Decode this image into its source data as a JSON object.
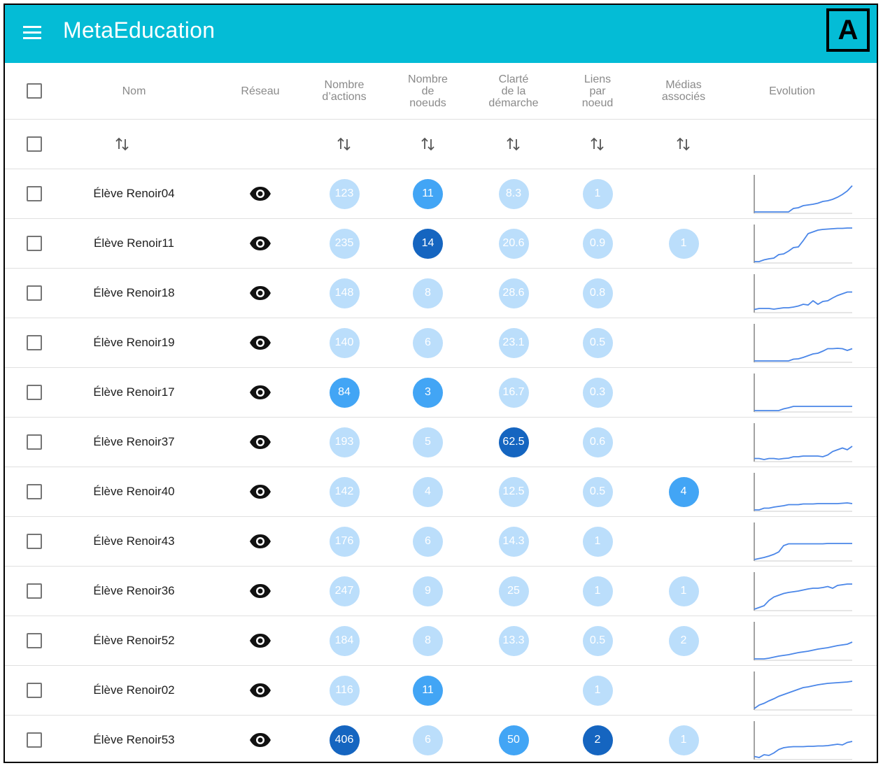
{
  "app": {
    "title": "MetaEducation",
    "badge": "A"
  },
  "columns": {
    "nom": "Nom",
    "reseau": "Réseau",
    "actions": "Nombre\nd’actions",
    "noeuds": "Nombre\nde\nnoeuds",
    "clarte": "Clarté\nde la\ndémarche",
    "liens": "Liens\npar\nnoeud",
    "medias": "Médias\nassociés",
    "evolution": "Evolution"
  },
  "icons": {
    "menu": "menu-icon",
    "network": "eye-icon",
    "sort": "sort-icon"
  },
  "colors": {
    "appbar": "#04bcd6",
    "low": "#bbdefb",
    "mid": "#42a5f5",
    "high": "#1565c0",
    "spark": "#4a86e8"
  },
  "rows": [
    {
      "name": "Élève Renoir04",
      "actions": {
        "v": "123",
        "l": 1
      },
      "noeuds": {
        "v": "11",
        "l": 2
      },
      "clarte": {
        "v": "8.3",
        "l": 1
      },
      "liens": {
        "v": "1",
        "l": 1
      },
      "medias": null,
      "evolution": [
        0,
        0,
        0,
        0,
        0,
        0,
        0,
        0,
        0.1,
        0.12,
        0.18,
        0.2,
        0.22,
        0.25,
        0.3,
        0.32,
        0.36,
        0.42,
        0.5,
        0.6,
        0.75
      ]
    },
    {
      "name": "Élève Renoir11",
      "actions": {
        "v": "235",
        "l": 1
      },
      "noeuds": {
        "v": "14",
        "l": 3
      },
      "clarte": {
        "v": "20.6",
        "l": 1
      },
      "liens": {
        "v": "0.9",
        "l": 1
      },
      "medias": {
        "v": "1",
        "l": 1
      },
      "evolution": [
        0,
        0,
        0.05,
        0.08,
        0.1,
        0.2,
        0.22,
        0.3,
        0.4,
        0.42,
        0.6,
        0.8,
        0.85,
        0.9,
        0.92,
        0.93,
        0.94,
        0.95,
        0.95,
        0.96,
        0.96
      ]
    },
    {
      "name": "Élève Renoir18",
      "actions": {
        "v": "148",
        "l": 1
      },
      "noeuds": {
        "v": "8",
        "l": 1
      },
      "clarte": {
        "v": "28.6",
        "l": 1
      },
      "liens": {
        "v": "0.8",
        "l": 1
      },
      "medias": null,
      "evolution": [
        0.05,
        0.08,
        0.08,
        0.08,
        0.06,
        0.08,
        0.1,
        0.1,
        0.12,
        0.15,
        0.2,
        0.18,
        0.3,
        0.2,
        0.28,
        0.3,
        0.38,
        0.45,
        0.5,
        0.55,
        0.55
      ]
    },
    {
      "name": "Élève Renoir19",
      "actions": {
        "v": "140",
        "l": 1
      },
      "noeuds": {
        "v": "6",
        "l": 1
      },
      "clarte": {
        "v": "23.1",
        "l": 1
      },
      "liens": {
        "v": "0.5",
        "l": 1
      },
      "medias": null,
      "evolution": [
        0,
        0,
        0,
        0,
        0,
        0,
        0,
        0,
        0.05,
        0.06,
        0.1,
        0.15,
        0.2,
        0.22,
        0.28,
        0.35,
        0.35,
        0.36,
        0.35,
        0.3,
        0.35
      ]
    },
    {
      "name": "Élève Renoir17",
      "actions": {
        "v": "84",
        "l": 2
      },
      "noeuds": {
        "v": "3",
        "l": 2
      },
      "clarte": {
        "v": "16.7",
        "l": 1
      },
      "liens": {
        "v": "0.3",
        "l": 1
      },
      "medias": null,
      "evolution": [
        0,
        0,
        0,
        0,
        0,
        0,
        0.05,
        0.08,
        0.12,
        0.12,
        0.12,
        0.12,
        0.12,
        0.12,
        0.12,
        0.12,
        0.12,
        0.12,
        0.12,
        0.12,
        0.12
      ]
    },
    {
      "name": "Élève Renoir37",
      "actions": {
        "v": "193",
        "l": 1
      },
      "noeuds": {
        "v": "5",
        "l": 1
      },
      "clarte": {
        "v": "62.5",
        "l": 3
      },
      "liens": {
        "v": "0.6",
        "l": 1
      },
      "medias": null,
      "evolution": [
        0.05,
        0.05,
        0.02,
        0.05,
        0.05,
        0.03,
        0.05,
        0.06,
        0.1,
        0.1,
        0.12,
        0.12,
        0.12,
        0.12,
        0.1,
        0.15,
        0.25,
        0.3,
        0.35,
        0.3,
        0.4
      ]
    },
    {
      "name": "Élève Renoir40",
      "actions": {
        "v": "142",
        "l": 1
      },
      "noeuds": {
        "v": "4",
        "l": 1
      },
      "clarte": {
        "v": "12.5",
        "l": 1
      },
      "liens": {
        "v": "0.5",
        "l": 1
      },
      "medias": {
        "v": "4",
        "l": 2
      },
      "evolution": [
        0,
        0,
        0.05,
        0.05,
        0.08,
        0.1,
        0.12,
        0.15,
        0.15,
        0.15,
        0.17,
        0.17,
        0.17,
        0.18,
        0.18,
        0.18,
        0.18,
        0.18,
        0.19,
        0.2,
        0.18
      ]
    },
    {
      "name": "Élève Renoir43",
      "actions": {
        "v": "176",
        "l": 1
      },
      "noeuds": {
        "v": "6",
        "l": 1
      },
      "clarte": {
        "v": "14.3",
        "l": 1
      },
      "liens": {
        "v": "1",
        "l": 1
      },
      "medias": null,
      "evolution": [
        0,
        0.03,
        0.06,
        0.1,
        0.15,
        0.22,
        0.4,
        0.45,
        0.45,
        0.45,
        0.45,
        0.45,
        0.45,
        0.45,
        0.45,
        0.46,
        0.46,
        0.46,
        0.46,
        0.46,
        0.46
      ]
    },
    {
      "name": "Élève Renoir36",
      "actions": {
        "v": "247",
        "l": 1
      },
      "noeuds": {
        "v": "9",
        "l": 1
      },
      "clarte": {
        "v": "25",
        "l": 1
      },
      "liens": {
        "v": "1",
        "l": 1
      },
      "medias": {
        "v": "1",
        "l": 1
      },
      "evolution": [
        0,
        0.05,
        0.1,
        0.25,
        0.35,
        0.4,
        0.45,
        0.48,
        0.5,
        0.52,
        0.55,
        0.58,
        0.6,
        0.6,
        0.62,
        0.65,
        0.6,
        0.68,
        0.7,
        0.72,
        0.72
      ]
    },
    {
      "name": "Élève Renoir52",
      "actions": {
        "v": "184",
        "l": 1
      },
      "noeuds": {
        "v": "8",
        "l": 1
      },
      "clarte": {
        "v": "13.3",
        "l": 1
      },
      "liens": {
        "v": "0.5",
        "l": 1
      },
      "medias": {
        "v": "2",
        "l": 1
      },
      "evolution": [
        0,
        0,
        0,
        0.02,
        0.05,
        0.08,
        0.1,
        0.12,
        0.15,
        0.18,
        0.2,
        0.22,
        0.25,
        0.28,
        0.3,
        0.32,
        0.35,
        0.38,
        0.4,
        0.42,
        0.48
      ]
    },
    {
      "name": "Élève Renoir02",
      "actions": {
        "v": "116",
        "l": 1
      },
      "noeuds": {
        "v": "11",
        "l": 2
      },
      "clarte": null,
      "liens": {
        "v": "1",
        "l": 1
      },
      "medias": null,
      "evolution": [
        0,
        0.1,
        0.15,
        0.22,
        0.28,
        0.35,
        0.4,
        0.45,
        0.5,
        0.55,
        0.6,
        0.62,
        0.65,
        0.68,
        0.7,
        0.72,
        0.73,
        0.74,
        0.75,
        0.76,
        0.78
      ]
    },
    {
      "name": "Élève Renoir53",
      "actions": {
        "v": "406",
        "l": 3
      },
      "noeuds": {
        "v": "6",
        "l": 1
      },
      "clarte": {
        "v": "50",
        "l": 2
      },
      "liens": {
        "v": "2",
        "l": 3
      },
      "medias": {
        "v": "1",
        "l": 1
      },
      "evolution": [
        0.05,
        0.02,
        0.1,
        0.08,
        0.15,
        0.25,
        0.3,
        0.32,
        0.33,
        0.33,
        0.33,
        0.34,
        0.34,
        0.35,
        0.35,
        0.36,
        0.38,
        0.4,
        0.38,
        0.45,
        0.48
      ]
    }
  ]
}
